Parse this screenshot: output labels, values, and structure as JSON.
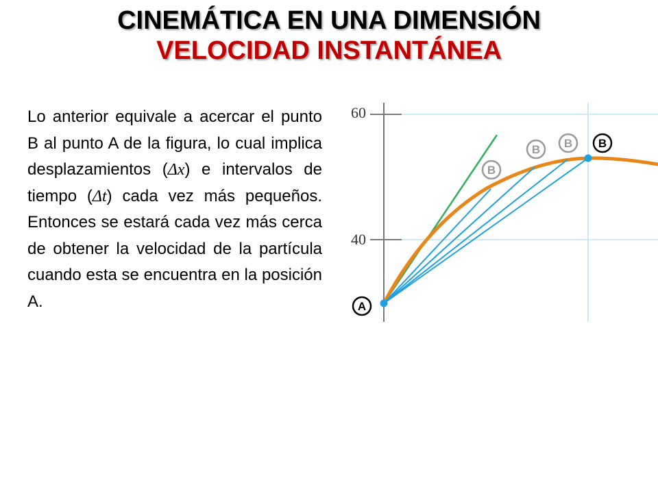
{
  "header": {
    "title": "CINEMÁTICA EN UNA DIMENSIÓN",
    "subtitle": "VELOCIDAD INSTANTÁNEA"
  },
  "body": {
    "p1": "Lo anterior equivale a acercar el punto B al punto A de la figura, lo cual implica desplazamientos (",
    "dx": "Δx",
    "p2": ") e intervalos de tiempo (",
    "dt": "Δt",
    "p3": ") cada vez más pequeños. Entonces se estará cada vez más cerca de obtener la velocidad de la partícula cuando esta se encuentra en la posición A."
  },
  "figure": {
    "y_tick_top": "60",
    "y_tick_mid": "40",
    "point_a_label": "A",
    "point_b_label": "B",
    "faded_b_label": "B",
    "colors": {
      "curve": "#e8861a",
      "secants": "#1fa1e0",
      "tangent": "#2fae5a",
      "grid": "#bfe3f7",
      "axis": "#7a7a7a",
      "title_accent": "#c00000"
    }
  }
}
